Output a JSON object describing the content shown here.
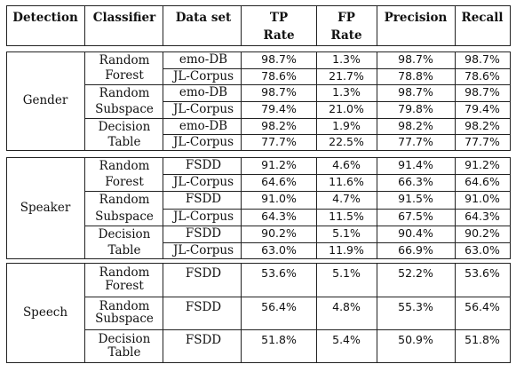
{
  "headers": {
    "detection": "Detection",
    "classifier": "Classifier",
    "dataset": "Data set",
    "tp_rate": [
      "TP",
      "Rate"
    ],
    "fp_rate": [
      "FP",
      "Rate"
    ],
    "precision": "Precision",
    "recall": "Recall"
  },
  "groups": [
    {
      "detection": "Gender",
      "classifiers": [
        {
          "name": [
            "Random",
            "Forest"
          ],
          "rows": [
            {
              "dataset": "emo-DB",
              "tp": "98.7%",
              "fp": "1.3%",
              "precision": "98.7%",
              "recall": "98.7%"
            },
            {
              "dataset": "JL-Corpus",
              "tp": "78.6%",
              "fp": "21.7%",
              "precision": "78.8%",
              "recall": "78.6%"
            }
          ]
        },
        {
          "name": [
            "Random",
            "Subspace"
          ],
          "rows": [
            {
              "dataset": "emo-DB",
              "tp": "98.7%",
              "fp": "1.3%",
              "precision": "98.7%",
              "recall": "98.7%"
            },
            {
              "dataset": "JL-Corpus",
              "tp": "79.4%",
              "fp": "21.0%",
              "precision": "79.8%",
              "recall": "79.4%"
            }
          ]
        },
        {
          "name": [
            "Decision",
            "Table"
          ],
          "rows": [
            {
              "dataset": "emo-DB",
              "tp": "98.2%",
              "fp": "1.9%",
              "precision": "98.2%",
              "recall": "98.2%"
            },
            {
              "dataset": "JL-Corpus",
              "tp": "77.7%",
              "fp": "22.5%",
              "precision": "77.7%",
              "recall": "77.7%"
            }
          ]
        }
      ]
    },
    {
      "detection": "Speaker",
      "classifiers": [
        {
          "name": [
            "Random",
            "Forest"
          ],
          "rows": [
            {
              "dataset": "FSDD",
              "tp": "91.2%",
              "fp": "4.6%",
              "precision": "91.4%",
              "recall": "91.2%"
            },
            {
              "dataset": "JL-Corpus",
              "tp": "64.6%",
              "fp": "11.6%",
              "precision": "66.3%",
              "recall": "64.6%"
            }
          ]
        },
        {
          "name": [
            "Random",
            "Subspace"
          ],
          "rows": [
            {
              "dataset": "FSDD",
              "tp": "91.0%",
              "fp": "4.7%",
              "precision": "91.5%",
              "recall": "91.0%"
            },
            {
              "dataset": "JL-Corpus",
              "tp": "64.3%",
              "fp": "11.5%",
              "precision": "67.5%",
              "recall": "64.3%"
            }
          ]
        },
        {
          "name": [
            "Decision",
            "Table"
          ],
          "rows": [
            {
              "dataset": "FSDD",
              "tp": "90.2%",
              "fp": "5.1%",
              "precision": "90.4%",
              "recall": "90.2%"
            },
            {
              "dataset": "JL-Corpus",
              "tp": "63.0%",
              "fp": "11.9%",
              "precision": "66.9%",
              "recall": "63.0%"
            }
          ]
        }
      ]
    },
    {
      "detection": "Speech",
      "classifiers": [
        {
          "name": [
            "Random",
            "Forest"
          ],
          "rows": [
            {
              "dataset": "FSDD",
              "tp": "53.6%",
              "fp": "5.1%",
              "precision": "52.2%",
              "recall": "53.6%"
            }
          ]
        },
        {
          "name": [
            "Random",
            "Subspace"
          ],
          "rows": [
            {
              "dataset": "FSDD",
              "tp": "56.4%",
              "fp": "4.8%",
              "precision": "55.3%",
              "recall": "56.4%"
            }
          ]
        },
        {
          "name": [
            "Decision",
            "Table"
          ],
          "rows": [
            {
              "dataset": "FSDD",
              "tp": "51.8%",
              "fp": "5.4%",
              "precision": "50.9%",
              "recall": "51.8%"
            }
          ]
        }
      ]
    }
  ]
}
